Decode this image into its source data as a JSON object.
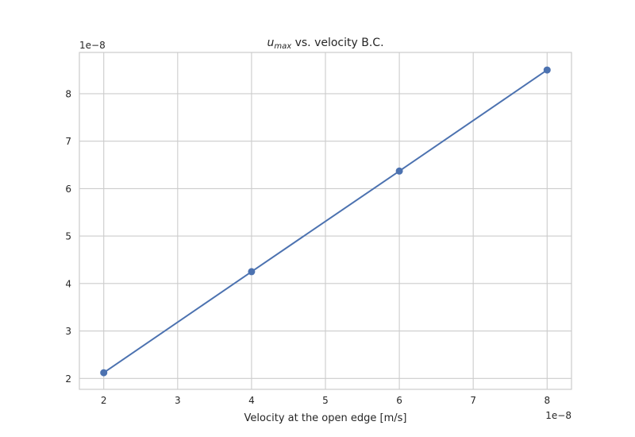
{
  "chart_data": {
    "type": "line",
    "title": {
      "symbol": "u",
      "subscript": "max",
      "rest": " vs. velocity B.C."
    },
    "xlabel": "Velocity at the open edge [m/s]",
    "ylabel": "",
    "x_offset_label": "1e−8",
    "y_offset_label": "1e−8",
    "xlim": [
      1.67e-08,
      8.33e-08
    ],
    "ylim": [
      1.77e-08,
      8.87e-08
    ],
    "x_ticks": [
      2e-08,
      3e-08,
      4e-08,
      5e-08,
      6e-08,
      7e-08,
      8e-08
    ],
    "x_tick_labels": [
      "2",
      "3",
      "4",
      "5",
      "6",
      "7",
      "8"
    ],
    "y_ticks": [
      2e-08,
      3e-08,
      4e-08,
      5e-08,
      6e-08,
      7e-08,
      8e-08
    ],
    "y_tick_labels": [
      "2",
      "3",
      "4",
      "5",
      "6",
      "7",
      "8"
    ],
    "grid": true,
    "series": [
      {
        "x": [
          2e-08,
          4e-08,
          6e-08,
          8e-08
        ],
        "values": [
          2.12e-08,
          4.25e-08,
          6.37e-08,
          8.5e-08
        ],
        "color": "#4c72b0",
        "marker": "circle"
      }
    ]
  }
}
